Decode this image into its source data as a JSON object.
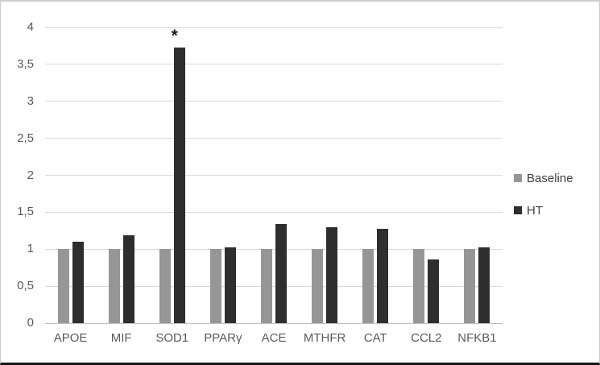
{
  "chart_data": {
    "type": "bar",
    "title": "",
    "xlabel": "",
    "ylabel": "",
    "categories": [
      "APOE",
      "MIF",
      "SOD1",
      "PPARγ",
      "ACE",
      "MTHFR",
      "CAT",
      "CCL2",
      "NFKB1"
    ],
    "series": [
      {
        "name": "Baseline",
        "color": "#969696",
        "values": [
          1.0,
          1.0,
          1.0,
          1.0,
          1.0,
          1.0,
          1.0,
          1.0,
          1.0
        ]
      },
      {
        "name": "HT",
        "color": "#2e2e2e",
        "values": [
          1.1,
          1.19,
          3.73,
          1.02,
          1.34,
          1.3,
          1.27,
          0.86,
          1.02
        ]
      }
    ],
    "ylim": [
      0,
      4
    ],
    "ytick_step": 0.5,
    "ytick_labels": [
      "0",
      "0,5",
      "1",
      "1,5",
      "2",
      "2,5",
      "3",
      "3,5",
      "4"
    ],
    "decimal_separator": ",",
    "grid": true,
    "legend_position": "right",
    "annotations": [
      {
        "text": "*",
        "category_index": 2,
        "series_index": 1,
        "meaning": "significance-marker"
      }
    ]
  },
  "colors": {
    "background": "#ffffff",
    "frame_border": "#cbcbcb",
    "frame_border_bottom": "#161616",
    "gridline": "#d9d9d9",
    "axis_line": "#bfbfbf",
    "tick_label": "#595959",
    "category_label": "#595959",
    "legend_label": "#404040",
    "annotation": "#1a1a1a"
  }
}
